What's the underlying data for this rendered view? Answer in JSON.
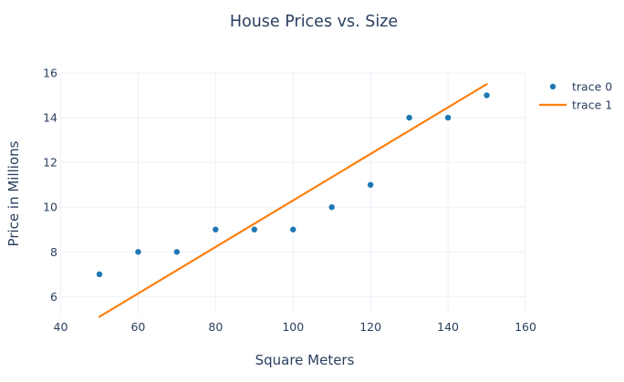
{
  "colors": {
    "background": "#ffffff",
    "grid": "#ebf0f8",
    "text": "#2a3f5f",
    "trace0": "#1f77b4",
    "trace1": "#ff7f0e"
  },
  "chart_data": {
    "type": "scatter",
    "title": "House Prices vs. Size",
    "xlabel": "Square Meters",
    "ylabel": "Price in Millions",
    "xlim": [
      40,
      160
    ],
    "ylim": [
      5.2,
      16
    ],
    "x_ticks": [
      40,
      60,
      80,
      100,
      120,
      140,
      160
    ],
    "y_ticks": [
      6,
      8,
      10,
      12,
      14,
      16
    ],
    "grid": true,
    "legend_position": "right",
    "series": [
      {
        "name": "trace 0",
        "type": "scatter",
        "color": "#1f77b4",
        "x": [
          50,
          60,
          70,
          80,
          90,
          100,
          110,
          120,
          130,
          140,
          150
        ],
        "y": [
          7,
          8,
          8,
          9,
          9,
          9,
          10,
          11,
          14,
          14,
          15
        ]
      },
      {
        "name": "trace 1",
        "type": "line",
        "color": "#ff7f0e",
        "x": [
          50,
          150
        ],
        "y": [
          5.1,
          15.5
        ]
      }
    ]
  }
}
